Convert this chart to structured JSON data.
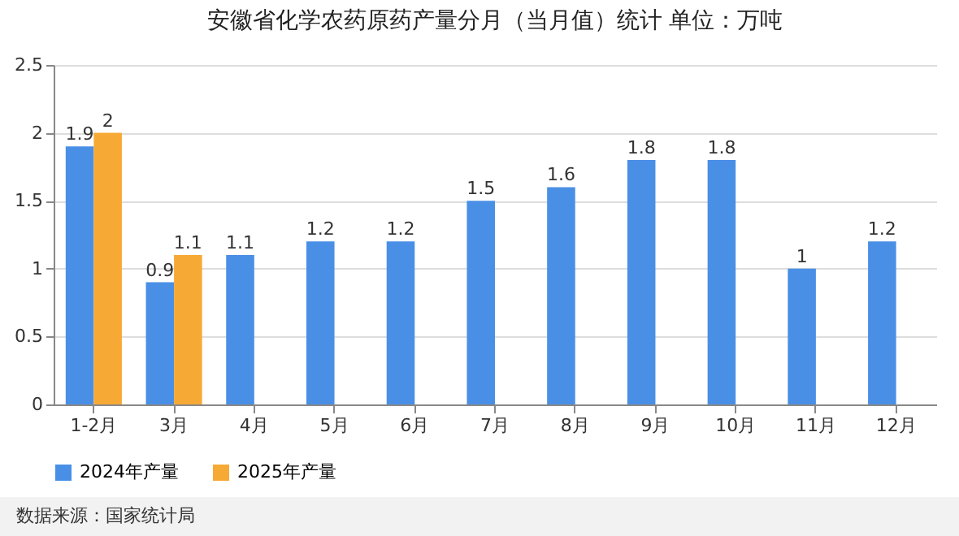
{
  "chart_data": {
    "type": "bar",
    "title": "安徽省化学农药原药产量分月（当月值）统计 单位：万吨",
    "categories": [
      "1-2月",
      "3月",
      "4月",
      "5月",
      "6月",
      "7月",
      "8月",
      "9月",
      "10月",
      "11月",
      "12月"
    ],
    "series": [
      {
        "name": "2024年产量",
        "color": "#4a8fe6",
        "values": [
          1.9,
          0.9,
          1.1,
          1.2,
          1.2,
          1.5,
          1.6,
          1.8,
          1.8,
          1,
          1.2
        ]
      },
      {
        "name": "2025年产量",
        "color": "#f7a935",
        "values": [
          2,
          1.1,
          null,
          null,
          null,
          null,
          null,
          null,
          null,
          null,
          null
        ]
      }
    ],
    "ylim": [
      0,
      2.5
    ],
    "yticks": [
      0,
      0.5,
      1,
      1.5,
      2,
      2.5
    ],
    "grid": "y",
    "legend": "bottom",
    "data_labels": true,
    "annotations": [
      "数据来源：国家统计局"
    ]
  }
}
